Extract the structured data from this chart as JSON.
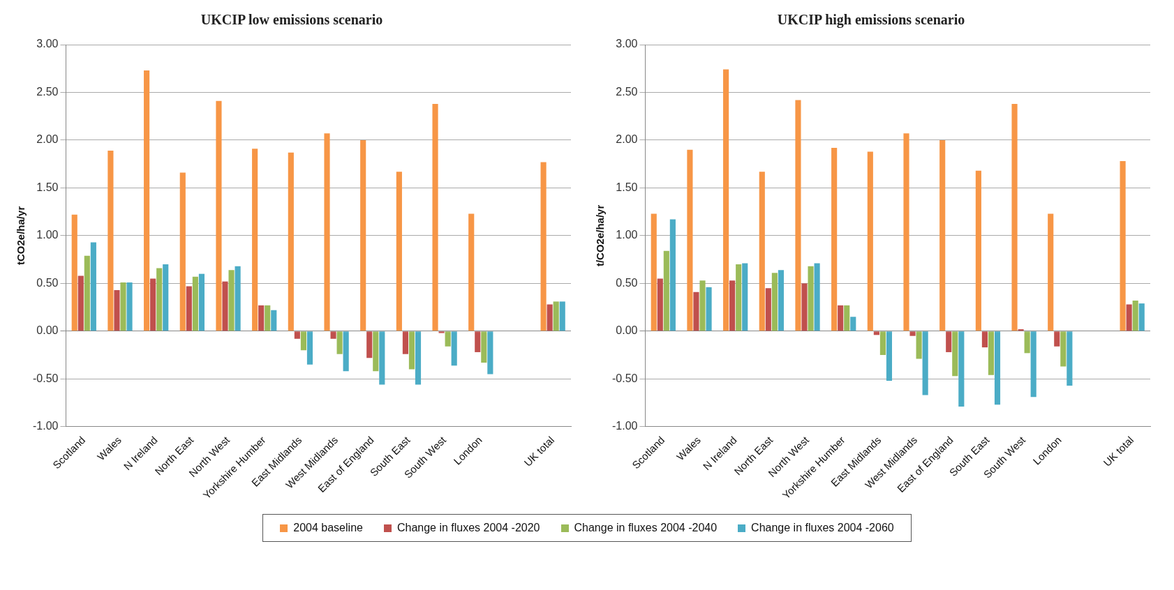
{
  "chart_data": [
    {
      "type": "bar",
      "title": "UKCIP low emissions scenario",
      "ylabel": "tCO2e/ha/yr",
      "categories": [
        "Scotland",
        "Wales",
        "N Ireland",
        "North East",
        "North West",
        "Yorkshire Humber",
        "East Midlands",
        "West Midlands",
        "East of England",
        "South East",
        "South West",
        "London",
        null,
        "UK total"
      ],
      "series": [
        {
          "name": "2004 baseline",
          "color": "#f79646",
          "values": [
            1.22,
            1.89,
            2.73,
            1.66,
            2.41,
            1.91,
            1.87,
            2.07,
            2.0,
            1.67,
            2.38,
            1.23,
            null,
            1.77
          ]
        },
        {
          "name": "Change in fluxes 2004 -2020",
          "color": "#c0504d",
          "values": [
            0.58,
            0.43,
            0.55,
            0.47,
            0.52,
            0.27,
            -0.08,
            -0.08,
            -0.28,
            -0.24,
            -0.02,
            -0.22,
            null,
            0.28
          ]
        },
        {
          "name": "Change in fluxes 2004 -2040",
          "color": "#9bbb59",
          "values": [
            0.79,
            0.51,
            0.66,
            0.57,
            0.64,
            0.27,
            -0.2,
            -0.24,
            -0.42,
            -0.4,
            -0.16,
            -0.33,
            null,
            0.31
          ]
        },
        {
          "name": "Change in fluxes 2004 -2060",
          "color": "#4bacc6",
          "values": [
            0.93,
            0.51,
            0.7,
            0.6,
            0.68,
            0.22,
            -0.35,
            -0.42,
            -0.56,
            -0.56,
            -0.36,
            -0.45,
            null,
            0.31
          ]
        }
      ],
      "ylim": [
        -1,
        3
      ],
      "yticks": [
        {
          "value": -1,
          "label": "-1.00"
        },
        {
          "value": -0.5,
          "label": "-0.50"
        },
        {
          "value": 0,
          "label": "0.00"
        },
        {
          "value": 0.5,
          "label": "0.50"
        },
        {
          "value": 1,
          "label": "1.00"
        },
        {
          "value": 1.5,
          "label": "1.50"
        },
        {
          "value": 2,
          "label": "2.00"
        },
        {
          "value": 2.5,
          "label": "2.50"
        },
        {
          "value": 3,
          "label": "3.00"
        }
      ],
      "grid": "y",
      "legend": "bottom"
    },
    {
      "type": "bar",
      "title": "UKCIP high emissions scenario",
      "ylabel": "t/CO2e/ha/yr",
      "categories": [
        "Scotland",
        "Wales",
        "N Ireland",
        "North East",
        "North West",
        "Yorkshire Humber",
        "East Midlands",
        "West Midlands",
        "East of England",
        "South East",
        "South West",
        "London",
        null,
        "UK total"
      ],
      "series": [
        {
          "color": "#f79646",
          "values": [
            1.23,
            1.9,
            2.74,
            1.67,
            2.42,
            1.92,
            1.88,
            2.07,
            2.0,
            1.68,
            2.38,
            1.23,
            null,
            1.78
          ]
        },
        {
          "color": "#c0504d",
          "values": [
            0.55,
            0.41,
            0.53,
            0.45,
            0.5,
            0.27,
            -0.04,
            -0.05,
            -0.22,
            -0.17,
            0.02,
            -0.16,
            null,
            0.28
          ]
        },
        {
          "color": "#9bbb59",
          "values": [
            0.84,
            0.53,
            0.7,
            0.61,
            0.68,
            0.27,
            -0.25,
            -0.29,
            -0.47,
            -0.46,
            -0.23,
            -0.37,
            null,
            0.32
          ]
        },
        {
          "color": "#4bacc6",
          "values": [
            1.17,
            0.46,
            0.71,
            0.64,
            0.71,
            0.15,
            -0.52,
            -0.67,
            -0.79,
            -0.77,
            -0.69,
            -0.57,
            null,
            0.29
          ]
        }
      ],
      "ylim": [
        -1,
        3
      ],
      "yticks": [
        {
          "value": -1,
          "label": "-1.00"
        },
        {
          "value": -0.5,
          "label": "-0.50"
        },
        {
          "value": 0,
          "label": "0.00"
        },
        {
          "value": 0.5,
          "label": "0.50"
        },
        {
          "value": 1,
          "label": "1.00"
        },
        {
          "value": 1.5,
          "label": "1.50"
        },
        {
          "value": 2,
          "label": "2.00"
        },
        {
          "value": 2.5,
          "label": "2.50"
        },
        {
          "value": 3,
          "label": "3.00"
        }
      ],
      "grid": "y"
    }
  ]
}
